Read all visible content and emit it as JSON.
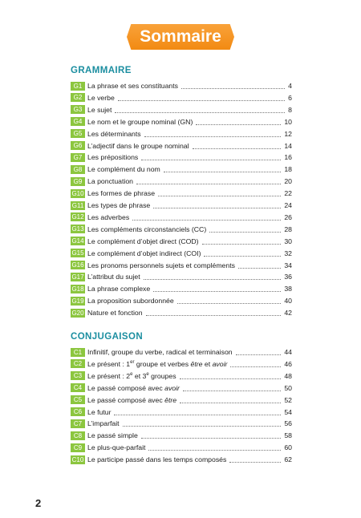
{
  "header": {
    "title": "Sommaire"
  },
  "sections": [
    {
      "title": "GRAMMAIRE",
      "entries": [
        {
          "code": "G1",
          "title": [
            {
              "t": "La phrase et ses constituants"
            }
          ],
          "page": 4
        },
        {
          "code": "G2",
          "title": [
            {
              "t": "Le verbe"
            }
          ],
          "page": 6
        },
        {
          "code": "G3",
          "title": [
            {
              "t": "Le sujet"
            }
          ],
          "page": 8
        },
        {
          "code": "G4",
          "title": [
            {
              "t": "Le nom et le groupe nominal (GN)"
            }
          ],
          "page": 10
        },
        {
          "code": "G5",
          "title": [
            {
              "t": "Les déterminants"
            }
          ],
          "page": 12
        },
        {
          "code": "G6",
          "title": [
            {
              "t": "L’adjectif dans le groupe nominal"
            }
          ],
          "page": 14
        },
        {
          "code": "G7",
          "title": [
            {
              "t": "Les prépositions"
            }
          ],
          "page": 16
        },
        {
          "code": "G8",
          "title": [
            {
              "t": "Le complément du nom"
            }
          ],
          "page": 18
        },
        {
          "code": "G9",
          "title": [
            {
              "t": "La ponctuation"
            }
          ],
          "page": 20
        },
        {
          "code": "G10",
          "title": [
            {
              "t": "Les formes de phrase"
            }
          ],
          "page": 22
        },
        {
          "code": "G11",
          "title": [
            {
              "t": "Les types de phrase"
            }
          ],
          "page": 24
        },
        {
          "code": "G12",
          "title": [
            {
              "t": "Les adverbes"
            }
          ],
          "page": 26
        },
        {
          "code": "G13",
          "title": [
            {
              "t": "Les compléments circonstanciels (CC)"
            }
          ],
          "page": 28
        },
        {
          "code": "G14",
          "title": [
            {
              "t": "Le complément d’objet direct (COD)"
            }
          ],
          "page": 30
        },
        {
          "code": "G15",
          "title": [
            {
              "t": "Le complément d’objet indirect (COI)"
            }
          ],
          "page": 32
        },
        {
          "code": "G16",
          "title": [
            {
              "t": "Les pronoms personnels sujets et compléments"
            }
          ],
          "page": 34
        },
        {
          "code": "G17",
          "title": [
            {
              "t": "L’attribut du sujet"
            }
          ],
          "page": 36
        },
        {
          "code": "G18",
          "title": [
            {
              "t": "La phrase complexe"
            }
          ],
          "page": 38
        },
        {
          "code": "G19",
          "title": [
            {
              "t": "La proposition subordonnée"
            }
          ],
          "page": 40
        },
        {
          "code": "G20",
          "title": [
            {
              "t": "Nature et fonction"
            }
          ],
          "page": 42
        }
      ]
    },
    {
      "title": "CONJUGAISON",
      "entries": [
        {
          "code": "C1",
          "title": [
            {
              "t": "Infinitif, groupe du verbe, radical et terminaison"
            }
          ],
          "page": 44
        },
        {
          "code": "C2",
          "title": [
            {
              "t": "Le présent : 1"
            },
            {
              "t": "er",
              "sup": true
            },
            {
              "t": " groupe et verbes "
            },
            {
              "t": "être",
              "i": true
            },
            {
              "t": " et "
            },
            {
              "t": "avoir",
              "i": true
            }
          ],
          "page": 46
        },
        {
          "code": "C3",
          "title": [
            {
              "t": "Le présent : 2"
            },
            {
              "t": "e",
              "sup": true
            },
            {
              "t": " et 3"
            },
            {
              "t": "e",
              "sup": true
            },
            {
              "t": " groupes"
            }
          ],
          "page": 48
        },
        {
          "code": "C4",
          "title": [
            {
              "t": "Le passé composé avec "
            },
            {
              "t": "avoir",
              "i": true
            }
          ],
          "page": 50
        },
        {
          "code": "C5",
          "title": [
            {
              "t": "Le passé composé avec "
            },
            {
              "t": "être",
              "i": true
            }
          ],
          "page": 52
        },
        {
          "code": "C6",
          "title": [
            {
              "t": "Le futur"
            }
          ],
          "page": 54
        },
        {
          "code": "C7",
          "title": [
            {
              "t": "L’imparfait"
            }
          ],
          "page": 56
        },
        {
          "code": "C8",
          "title": [
            {
              "t": "Le passé simple"
            }
          ],
          "page": 58
        },
        {
          "code": "C9",
          "title": [
            {
              "t": "Le plus-que-parfait"
            }
          ],
          "page": 60
        },
        {
          "code": "C10",
          "title": [
            {
              "t": "Le participe passé dans les temps composés"
            }
          ],
          "page": 62
        }
      ]
    }
  ],
  "footer": {
    "page_number": 2
  }
}
